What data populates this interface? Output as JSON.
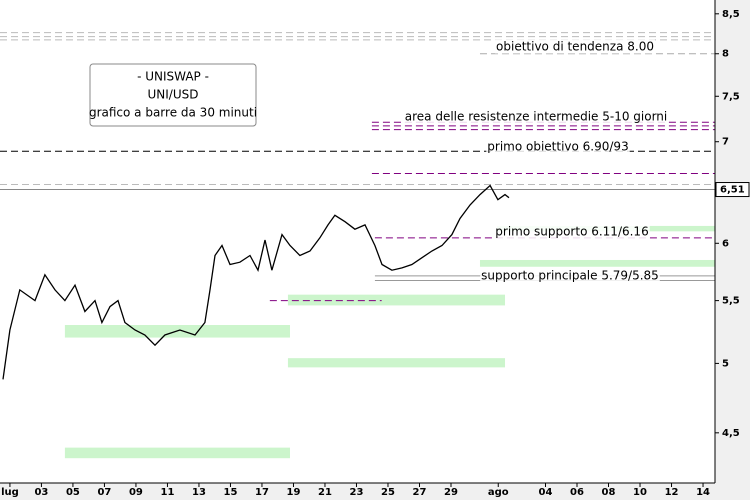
{
  "chart_data": {
    "type": "line",
    "title_lines": [
      "- UNISWAP -",
      "UNI/USD",
      "grafico a barre da 30 minuti"
    ],
    "log_scale": true,
    "xlim": [
      0.37,
      45.76
    ],
    "ylim": [
      4.17,
      8.68
    ],
    "xticks": [
      {
        "value": 1,
        "label": "lug"
      },
      {
        "value": 3,
        "label": "03"
      },
      {
        "value": 5,
        "label": "05"
      },
      {
        "value": 7,
        "label": "07"
      },
      {
        "value": 9,
        "label": "09"
      },
      11,
      13,
      15,
      17,
      19,
      21,
      23,
      25,
      27,
      29,
      {
        "value": 32,
        "label": "ago"
      },
      {
        "value": 35,
        "label": "04"
      },
      {
        "value": 37,
        "label": "06"
      },
      {
        "value": 39,
        "label": "08"
      },
      {
        "value": 41,
        "label": "10"
      },
      {
        "value": 43,
        "label": "12"
      },
      {
        "value": 45,
        "label": "14"
      }
    ],
    "yticks": [
      {
        "value": 4.5,
        "label": "4,5"
      },
      5,
      {
        "value": 5.5,
        "label": "5,5"
      },
      6,
      7,
      {
        "value": 7.5,
        "label": "7,5"
      },
      8,
      {
        "value": 8.5,
        "label": "8,5"
      }
    ],
    "last_price": {
      "value": 6.51,
      "label": "6,51"
    },
    "series": [
      {
        "name": "UNI/USD",
        "color": "#000000",
        "x": [
          0.56,
          1.0,
          1.63,
          2.59,
          3.22,
          3.86,
          4.49,
          5.13,
          5.76,
          6.4,
          6.84,
          7.35,
          7.86,
          8.3,
          8.94,
          9.57,
          10.21,
          10.84,
          11.79,
          12.75,
          13.38,
          13.7,
          14.02,
          14.46,
          14.97,
          15.6,
          16.24,
          16.75,
          17.19,
          17.63,
          18.27,
          18.78,
          19.41,
          20.05,
          20.68,
          21.19,
          21.63,
          22.27,
          22.9,
          23.54,
          24.17,
          24.62,
          25.25,
          25.89,
          26.52,
          27.16,
          27.79,
          28.43,
          29.06,
          29.57,
          30.21,
          30.84,
          31.48,
          31.98,
          32.43,
          32.68
        ],
        "values": [
          4.88,
          5.26,
          5.59,
          5.5,
          5.72,
          5.59,
          5.5,
          5.63,
          5.41,
          5.5,
          5.32,
          5.45,
          5.5,
          5.32,
          5.26,
          5.22,
          5.14,
          5.22,
          5.26,
          5.22,
          5.32,
          5.59,
          5.89,
          5.98,
          5.81,
          5.83,
          5.89,
          5.76,
          6.03,
          5.76,
          6.08,
          5.98,
          5.89,
          5.93,
          6.05,
          6.17,
          6.26,
          6.2,
          6.13,
          6.17,
          5.98,
          5.81,
          5.76,
          5.78,
          5.81,
          5.87,
          5.93,
          5.98,
          6.08,
          6.23,
          6.36,
          6.46,
          6.55,
          6.41,
          6.46,
          6.43
        ]
      }
    ],
    "levels": [
      {
        "value": 8.26,
        "color": "#bbbbbb",
        "style": "dashed"
      },
      {
        "value": 8.21,
        "color": "#bbbbbb",
        "style": "dashed"
      },
      {
        "value": 8.17,
        "color": "#bbbbbb",
        "style": "dashed"
      },
      {
        "value": 8,
        "color": "#aaaaaa",
        "style": "dashed",
        "from": 30.84
      },
      {
        "value": 7.21,
        "color": "#800080",
        "style": "dashed",
        "from": 23.98
      },
      {
        "value": 7.17,
        "color": "#800080",
        "style": "dashed",
        "from": 23.98
      },
      {
        "value": 7.13,
        "color": "#800080",
        "style": "dashed",
        "from": 23.98
      },
      {
        "value": 6.9,
        "color": "#000000",
        "style": "dashed"
      },
      {
        "value": 6.67,
        "color": "#800080",
        "style": "dashed",
        "from": 23.98
      },
      {
        "value": 6.56,
        "color": "#bbbbbb",
        "style": "dashed"
      },
      {
        "value": 6.51,
        "color": "#888888",
        "style": "solid"
      },
      {
        "value": 6.05,
        "color": "#800080",
        "style": "dashed",
        "from": 24.17
      },
      {
        "value": 5.71,
        "color": "#999999",
        "style": "solid",
        "from": 24.17
      },
      {
        "value": 5.67,
        "color": "#999999",
        "style": "solid",
        "from": 24.17
      },
      {
        "value": 5.5,
        "color": "#800080",
        "style": "dashed",
        "from": 17.5,
        "to": 24.6
      }
    ],
    "zones": [
      {
        "low": 5.46,
        "high": 5.55,
        "from": 18.65,
        "to": 32.43,
        "color": "#ccf5cc"
      },
      {
        "low": 5.2,
        "high": 5.3,
        "from": 4.49,
        "to": 18.78,
        "color": "#ccf5cc"
      },
      {
        "low": 4.97,
        "high": 5.04,
        "from": 18.65,
        "to": 32.43,
        "color": "#ccf5cc"
      },
      {
        "low": 4.33,
        "high": 4.4,
        "from": 4.49,
        "to": 18.78,
        "color": "#ccf5cc"
      },
      {
        "low": 6.11,
        "high": 6.16,
        "from": 31.92,
        "color": "#ccf5cc"
      },
      {
        "low": 5.79,
        "high": 5.85,
        "from": 30.84,
        "color": "#ccf5cc"
      }
    ],
    "annotations": [
      "obiettivo di tendenza 8.00",
      "area delle resistenze intermedie 5-10 giorni",
      "primo obiettivo 6.90/93",
      "primo supporto 6.11/6.16",
      "supporto principale 5.79/5.85"
    ]
  }
}
